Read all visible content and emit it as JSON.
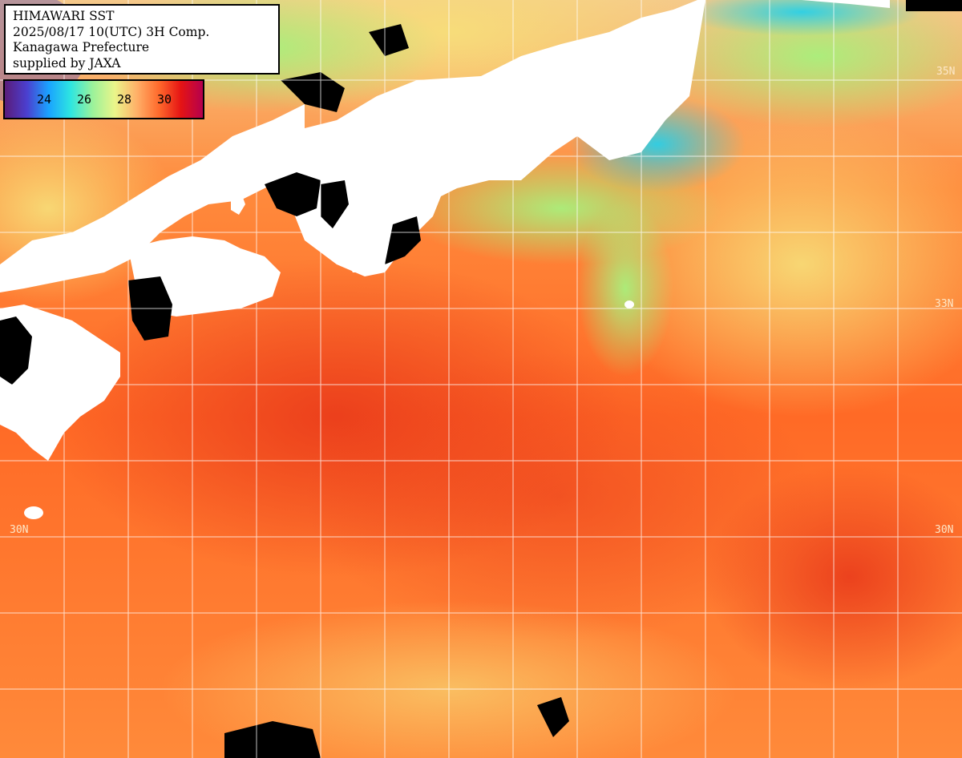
{
  "title_box": {
    "line1": "HIMAWARI SST",
    "line2": "2025/08/17 10(UTC) 3H Comp.",
    "line3": "Kanagawa Prefecture",
    "line4": "supplied by JAXA"
  },
  "colorbar": {
    "ticks": [
      "24",
      "26",
      "28",
      "30"
    ],
    "colors": [
      "#5a1c7a",
      "#4b3fcf",
      "#1aa3ff",
      "#2ee6e0",
      "#9cf29a",
      "#eaf58a",
      "#ffb068",
      "#ff6a2c",
      "#e51414",
      "#b5004e"
    ]
  },
  "grid_labels": {
    "lat_35": "35N",
    "lat_33_right": "33N",
    "lat_30_left": "30N",
    "lat_30_right": "30N"
  },
  "map_colors": {
    "land": "#ffffff",
    "missing": "#000000",
    "warm_sea": "#ff7a2a",
    "hot_sea": "#ee4a18",
    "cool_coast": "#a6f07e",
    "cold_coast": "#2ed2ea",
    "grid": "#ffffff"
  }
}
